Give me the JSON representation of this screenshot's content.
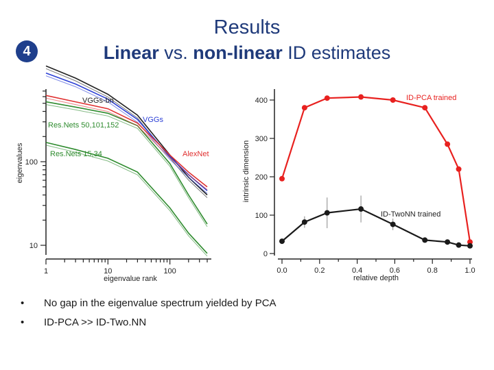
{
  "slide": {
    "title": "Results",
    "badge": "4",
    "subtitle_bold1": "Linear",
    "subtitle_mid": " vs. ",
    "subtitle_bold2": "non-linear",
    "subtitle_tail": " ID estimates",
    "bullets": [
      "No gap in the eigenvalue spectrum yielded by PCA",
      "ID-PCA >> ID-Two.NN"
    ],
    "colors": {
      "title": "#1f3a7a",
      "badge": "#1f3f8c"
    }
  },
  "chart_data": [
    {
      "type": "line",
      "xlabel": "eigenvalue rank",
      "ylabel": "eigenvalues",
      "xscale": "log",
      "yscale": "log",
      "x_ticks": [
        "1",
        "10",
        "100"
      ],
      "y_ticks": [
        "10",
        "100"
      ],
      "series": [
        {
          "name": "VGGs-bn",
          "color": "#222222",
          "x": [
            1,
            3,
            10,
            30,
            100,
            200,
            400
          ],
          "y": [
            1400,
            1000,
            640,
            360,
            120,
            65,
            40
          ]
        },
        {
          "name": "VGGs",
          "color": "#2b3fd6",
          "x": [
            1,
            3,
            10,
            30,
            100,
            200,
            400
          ],
          "y": [
            1150,
            850,
            560,
            320,
            115,
            70,
            45
          ]
        },
        {
          "name": "Res.Nets 50,101,152",
          "color": "#2e8b2e",
          "x": [
            1,
            3,
            10,
            30,
            100,
            200,
            400
          ],
          "y": [
            520,
            450,
            380,
            270,
            95,
            40,
            18
          ]
        },
        {
          "name": "AlexNet",
          "color": "#e03030",
          "x": [
            1,
            3,
            10,
            30,
            100,
            200,
            400
          ],
          "y": [
            620,
            520,
            430,
            290,
            120,
            75,
            50
          ]
        },
        {
          "name": "Res.Nets 15,34",
          "color": "#2e8b2e",
          "x": [
            1,
            3,
            10,
            30,
            100,
            200,
            400
          ],
          "y": [
            170,
            140,
            110,
            75,
            28,
            14,
            8
          ]
        }
      ]
    },
    {
      "type": "line",
      "xlabel": "relative depth",
      "ylabel": "intrinsic dimension",
      "xlim": [
        0,
        1
      ],
      "ylim": [
        0,
        420
      ],
      "x_ticks": [
        "0.0",
        "0.2",
        "0.4",
        "0.6",
        "0.8",
        "1.0"
      ],
      "y_ticks": [
        "0",
        "100",
        "200",
        "300",
        "400"
      ],
      "series": [
        {
          "name": "ID-PCA trained",
          "color": "#e8211f",
          "x": [
            0.0,
            0.12,
            0.24,
            0.42,
            0.59,
            0.76,
            0.88,
            0.94,
            1.0
          ],
          "y": [
            195,
            380,
            405,
            408,
            400,
            380,
            285,
            220,
            30
          ]
        },
        {
          "name": "ID-TwoNN trained",
          "color": "#1a1a1a",
          "x": [
            0.0,
            0.12,
            0.24,
            0.42,
            0.59,
            0.76,
            0.88,
            0.94,
            1.0
          ],
          "y": [
            32,
            82,
            106,
            116,
            76,
            35,
            30,
            22,
            20
          ],
          "err": [
            0,
            15,
            40,
            35,
            15,
            0,
            0,
            0,
            0
          ]
        }
      ]
    }
  ]
}
